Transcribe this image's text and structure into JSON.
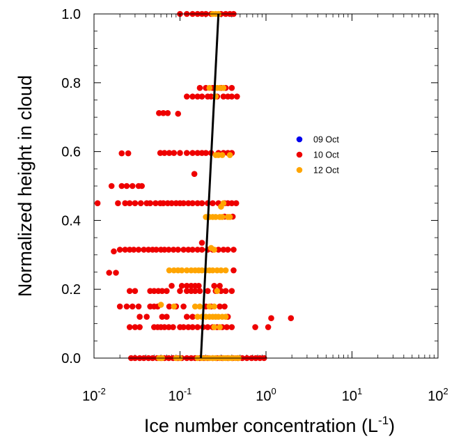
{
  "chart_data": {
    "type": "scatter",
    "x_scale": "log",
    "xlim": [
      0.01,
      100
    ],
    "ylim": [
      0.0,
      1.0
    ],
    "xlabel": "Ice number concentration (L",
    "xlabel_exponent": "-1",
    "xlabel_suffix": ")",
    "ylabel": "Normalized height in cloud",
    "x_ticks": [
      {
        "base": "10",
        "exp": "-2"
      },
      {
        "base": "10",
        "exp": "-1"
      },
      {
        "base": "10",
        "exp": "0"
      },
      {
        "base": "10",
        "exp": "1"
      },
      {
        "base": "10",
        "exp": "2"
      }
    ],
    "y_ticks": [
      "0.0",
      "0.2",
      "0.4",
      "0.6",
      "0.8",
      "1.0"
    ],
    "legend_position": "right-middle",
    "series": [
      {
        "name": "09 Oct",
        "color": "#0000ee",
        "points": []
      },
      {
        "name": "10 Oct",
        "color": "#ee0000",
        "points": [
          [
            0.1,
            1.0
          ],
          [
            0.12,
            1.0
          ],
          [
            0.14,
            1.0
          ],
          [
            0.16,
            1.0
          ],
          [
            0.18,
            1.0
          ],
          [
            0.2,
            1.0
          ],
          [
            0.23,
            1.0
          ],
          [
            0.3,
            1.0
          ],
          [
            0.34,
            1.0
          ],
          [
            0.38,
            1.0
          ],
          [
            0.42,
            1.0
          ],
          [
            0.17,
            0.785
          ],
          [
            0.2,
            0.785
          ],
          [
            0.24,
            0.785
          ],
          [
            0.3,
            0.785
          ],
          [
            0.34,
            0.785
          ],
          [
            0.4,
            0.785
          ],
          [
            0.12,
            0.76
          ],
          [
            0.14,
            0.76
          ],
          [
            0.16,
            0.76
          ],
          [
            0.18,
            0.76
          ],
          [
            0.21,
            0.76
          ],
          [
            0.23,
            0.76
          ],
          [
            0.27,
            0.76
          ],
          [
            0.32,
            0.76
          ],
          [
            0.36,
            0.76
          ],
          [
            0.4,
            0.76
          ],
          [
            0.46,
            0.76
          ],
          [
            0.057,
            0.712
          ],
          [
            0.064,
            0.712
          ],
          [
            0.072,
            0.712
          ],
          [
            0.095,
            0.71
          ],
          [
            0.021,
            0.595
          ],
          [
            0.025,
            0.595
          ],
          [
            0.059,
            0.596
          ],
          [
            0.066,
            0.596
          ],
          [
            0.075,
            0.596
          ],
          [
            0.085,
            0.596
          ],
          [
            0.1,
            0.596
          ],
          [
            0.12,
            0.596
          ],
          [
            0.14,
            0.596
          ],
          [
            0.16,
            0.596
          ],
          [
            0.18,
            0.596
          ],
          [
            0.2,
            0.596
          ],
          [
            0.23,
            0.596
          ],
          [
            0.28,
            0.596
          ],
          [
            0.32,
            0.596
          ],
          [
            0.36,
            0.596
          ],
          [
            0.4,
            0.596
          ],
          [
            0.147,
            0.535
          ],
          [
            0.016,
            0.5
          ],
          [
            0.021,
            0.5
          ],
          [
            0.024,
            0.5
          ],
          [
            0.028,
            0.5
          ],
          [
            0.033,
            0.5
          ],
          [
            0.036,
            0.5
          ],
          [
            0.011,
            0.45
          ],
          [
            0.019,
            0.45
          ],
          [
            0.023,
            0.45
          ],
          [
            0.026,
            0.45
          ],
          [
            0.03,
            0.45
          ],
          [
            0.035,
            0.45
          ],
          [
            0.041,
            0.45
          ],
          [
            0.045,
            0.45
          ],
          [
            0.052,
            0.45
          ],
          [
            0.059,
            0.45
          ],
          [
            0.064,
            0.45
          ],
          [
            0.072,
            0.45
          ],
          [
            0.08,
            0.45
          ],
          [
            0.09,
            0.45
          ],
          [
            0.1,
            0.45
          ],
          [
            0.11,
            0.45
          ],
          [
            0.125,
            0.45
          ],
          [
            0.14,
            0.45
          ],
          [
            0.16,
            0.45
          ],
          [
            0.18,
            0.45
          ],
          [
            0.21,
            0.45
          ],
          [
            0.24,
            0.45
          ],
          [
            0.28,
            0.45
          ],
          [
            0.33,
            0.45
          ],
          [
            0.36,
            0.45
          ],
          [
            0.4,
            0.45
          ],
          [
            0.45,
            0.45
          ],
          [
            0.33,
            0.411
          ],
          [
            0.41,
            0.411
          ],
          [
            0.18,
            0.335
          ],
          [
            0.017,
            0.31
          ],
          [
            0.02,
            0.315
          ],
          [
            0.023,
            0.315
          ],
          [
            0.026,
            0.315
          ],
          [
            0.029,
            0.315
          ],
          [
            0.033,
            0.315
          ],
          [
            0.038,
            0.315
          ],
          [
            0.043,
            0.315
          ],
          [
            0.048,
            0.315
          ],
          [
            0.053,
            0.315
          ],
          [
            0.06,
            0.315
          ],
          [
            0.066,
            0.315
          ],
          [
            0.074,
            0.315
          ],
          [
            0.084,
            0.315
          ],
          [
            0.095,
            0.315
          ],
          [
            0.11,
            0.315
          ],
          [
            0.125,
            0.315
          ],
          [
            0.14,
            0.315
          ],
          [
            0.16,
            0.315
          ],
          [
            0.18,
            0.315
          ],
          [
            0.21,
            0.315
          ],
          [
            0.24,
            0.315
          ],
          [
            0.28,
            0.315
          ],
          [
            0.32,
            0.315
          ],
          [
            0.36,
            0.315
          ],
          [
            0.42,
            0.315
          ],
          [
            0.015,
            0.248
          ],
          [
            0.018,
            0.248
          ],
          [
            0.42,
            0.255
          ],
          [
            0.08,
            0.21
          ],
          [
            0.105,
            0.21
          ],
          [
            0.12,
            0.21
          ],
          [
            0.135,
            0.21
          ],
          [
            0.15,
            0.21
          ],
          [
            0.165,
            0.21
          ],
          [
            0.25,
            0.21
          ],
          [
            0.29,
            0.21
          ],
          [
            0.026,
            0.195
          ],
          [
            0.03,
            0.195
          ],
          [
            0.045,
            0.195
          ],
          [
            0.05,
            0.195
          ],
          [
            0.056,
            0.195
          ],
          [
            0.062,
            0.195
          ],
          [
            0.07,
            0.195
          ],
          [
            0.1,
            0.195
          ],
          [
            0.12,
            0.195
          ],
          [
            0.135,
            0.195
          ],
          [
            0.15,
            0.195
          ],
          [
            0.17,
            0.195
          ],
          [
            0.21,
            0.195
          ],
          [
            0.26,
            0.195
          ],
          [
            0.3,
            0.195
          ],
          [
            0.34,
            0.195
          ],
          [
            0.4,
            0.195
          ],
          [
            0.02,
            0.15
          ],
          [
            0.024,
            0.15
          ],
          [
            0.028,
            0.15
          ],
          [
            0.033,
            0.15
          ],
          [
            0.045,
            0.15
          ],
          [
            0.05,
            0.15
          ],
          [
            0.055,
            0.15
          ],
          [
            0.075,
            0.15
          ],
          [
            0.09,
            0.15
          ],
          [
            0.11,
            0.15
          ],
          [
            0.2,
            0.15
          ],
          [
            0.23,
            0.15
          ],
          [
            0.29,
            0.15
          ],
          [
            0.33,
            0.15
          ],
          [
            0.034,
            0.12
          ],
          [
            0.041,
            0.12
          ],
          [
            0.062,
            0.12
          ],
          [
            0.07,
            0.12
          ],
          [
            0.12,
            0.12
          ],
          [
            0.14,
            0.12
          ],
          [
            0.36,
            0.12
          ],
          [
            1.15,
            0.116
          ],
          [
            1.95,
            0.116
          ],
          [
            0.026,
            0.09
          ],
          [
            0.03,
            0.09
          ],
          [
            0.034,
            0.09
          ],
          [
            0.05,
            0.09
          ],
          [
            0.055,
            0.09
          ],
          [
            0.06,
            0.09
          ],
          [
            0.066,
            0.09
          ],
          [
            0.074,
            0.09
          ],
          [
            0.083,
            0.09
          ],
          [
            0.1,
            0.09
          ],
          [
            0.11,
            0.09
          ],
          [
            0.125,
            0.09
          ],
          [
            0.14,
            0.09
          ],
          [
            0.16,
            0.09
          ],
          [
            0.185,
            0.09
          ],
          [
            0.21,
            0.09
          ],
          [
            0.24,
            0.09
          ],
          [
            0.27,
            0.09
          ],
          [
            0.31,
            0.09
          ],
          [
            0.35,
            0.09
          ],
          [
            0.4,
            0.09
          ],
          [
            0.75,
            0.09
          ],
          [
            1.06,
            0.09
          ],
          [
            0.027,
            0.0
          ],
          [
            0.03,
            0.0
          ],
          [
            0.034,
            0.0
          ],
          [
            0.038,
            0.0
          ],
          [
            0.043,
            0.0
          ],
          [
            0.048,
            0.0
          ],
          [
            0.054,
            0.0
          ],
          [
            0.06,
            0.0
          ],
          [
            0.066,
            0.0
          ],
          [
            0.074,
            0.0
          ],
          [
            0.083,
            0.0
          ],
          [
            0.095,
            0.0
          ],
          [
            0.105,
            0.0
          ],
          [
            0.12,
            0.0
          ],
          [
            0.135,
            0.0
          ],
          [
            0.15,
            0.0
          ],
          [
            0.17,
            0.0
          ],
          [
            0.19,
            0.0
          ],
          [
            0.21,
            0.0
          ],
          [
            0.24,
            0.0
          ],
          [
            0.27,
            0.0
          ],
          [
            0.31,
            0.0
          ],
          [
            0.36,
            0.0
          ],
          [
            0.41,
            0.0
          ],
          [
            0.47,
            0.0
          ],
          [
            0.53,
            0.0
          ],
          [
            0.6,
            0.0
          ],
          [
            0.68,
            0.0
          ],
          [
            0.76,
            0.0
          ],
          [
            0.85,
            0.0
          ],
          [
            0.95,
            0.0
          ]
        ]
      },
      {
        "name": "12 Oct",
        "color": "#ffa500",
        "points": [
          [
            0.24,
            1.0
          ],
          [
            0.26,
            1.0
          ],
          [
            0.28,
            1.0
          ],
          [
            0.22,
            0.785
          ],
          [
            0.27,
            0.785
          ],
          [
            0.29,
            0.785
          ],
          [
            0.32,
            0.785
          ],
          [
            0.26,
            0.76
          ],
          [
            0.26,
            0.59
          ],
          [
            0.28,
            0.59
          ],
          [
            0.31,
            0.59
          ],
          [
            0.38,
            0.59
          ],
          [
            0.3,
            0.44
          ],
          [
            0.32,
            0.45
          ],
          [
            0.2,
            0.41
          ],
          [
            0.22,
            0.41
          ],
          [
            0.24,
            0.41
          ],
          [
            0.26,
            0.41
          ],
          [
            0.29,
            0.41
          ],
          [
            0.31,
            0.41
          ],
          [
            0.36,
            0.41
          ],
          [
            0.38,
            0.41
          ],
          [
            0.23,
            0.32
          ],
          [
            0.25,
            0.315
          ],
          [
            0.075,
            0.255
          ],
          [
            0.085,
            0.255
          ],
          [
            0.095,
            0.255
          ],
          [
            0.105,
            0.255
          ],
          [
            0.12,
            0.255
          ],
          [
            0.135,
            0.255
          ],
          [
            0.15,
            0.255
          ],
          [
            0.165,
            0.255
          ],
          [
            0.18,
            0.255
          ],
          [
            0.2,
            0.255
          ],
          [
            0.22,
            0.255
          ],
          [
            0.24,
            0.255
          ],
          [
            0.27,
            0.255
          ],
          [
            0.3,
            0.255
          ],
          [
            0.34,
            0.255
          ],
          [
            0.27,
            0.195
          ],
          [
            0.06,
            0.155
          ],
          [
            0.085,
            0.15
          ],
          [
            0.15,
            0.15
          ],
          [
            0.17,
            0.15
          ],
          [
            0.22,
            0.15
          ],
          [
            0.25,
            0.15
          ],
          [
            0.16,
            0.12
          ],
          [
            0.18,
            0.12
          ],
          [
            0.2,
            0.12
          ],
          [
            0.22,
            0.12
          ],
          [
            0.24,
            0.12
          ],
          [
            0.26,
            0.12
          ],
          [
            0.28,
            0.12
          ],
          [
            0.31,
            0.12
          ],
          [
            0.34,
            0.12
          ],
          [
            0.25,
            0.09
          ],
          [
            0.29,
            0.09
          ],
          [
            0.057,
            0.0
          ],
          [
            0.062,
            0.0
          ],
          [
            0.09,
            0.0
          ],
          [
            0.1,
            0.0
          ],
          [
            0.16,
            0.0
          ],
          [
            0.18,
            0.0
          ],
          [
            0.2,
            0.0
          ],
          [
            0.22,
            0.0
          ],
          [
            0.24,
            0.0
          ],
          [
            0.26,
            0.0
          ],
          [
            0.29,
            0.0
          ],
          [
            0.32,
            0.0
          ],
          [
            0.34,
            0.0
          ],
          [
            0.37,
            0.0
          ],
          [
            0.4,
            0.0
          ],
          [
            0.44,
            0.0
          ],
          [
            0.48,
            0.0
          ]
        ]
      }
    ],
    "fit_line": {
      "color": "#000000",
      "points": [
        [
          0.175,
          0.0
        ],
        [
          0.28,
          1.0
        ]
      ]
    }
  }
}
